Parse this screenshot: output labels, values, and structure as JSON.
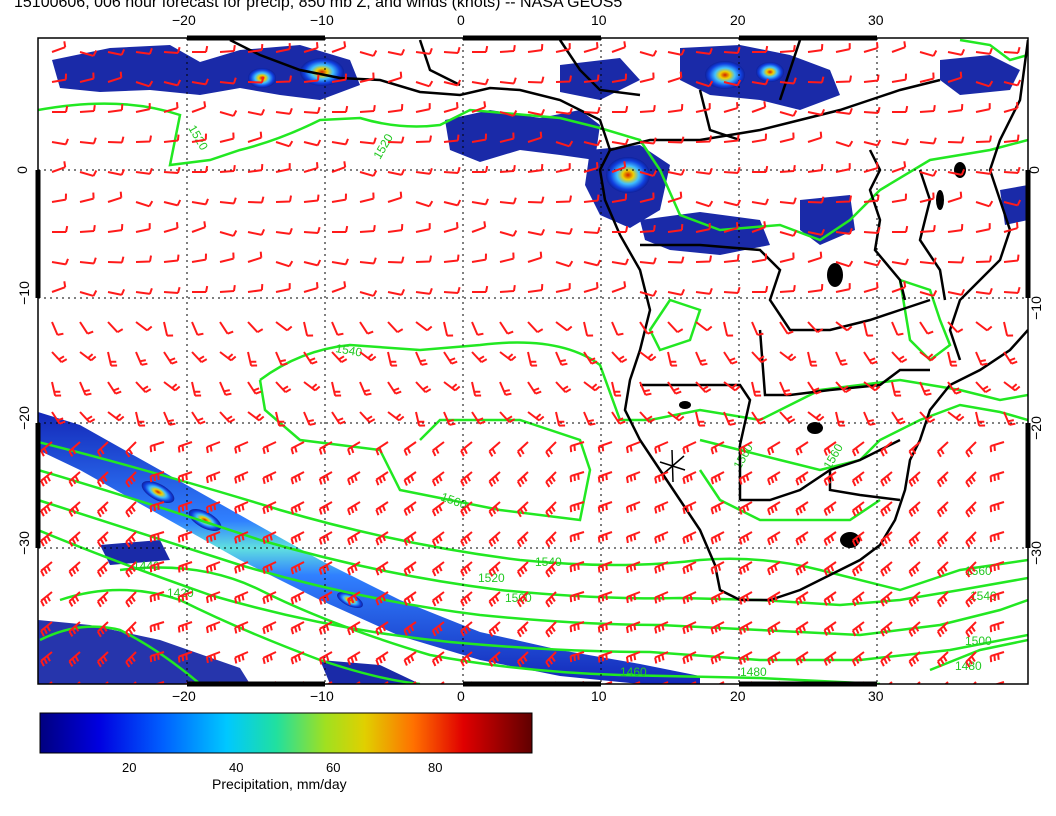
{
  "title": "15100606, 006 hour forecast for precip, 850 mb Z, and winds (knots) -- NASA GEOS5",
  "axes": {
    "lon_ticks": [
      "−20",
      "−10",
      "0",
      "10",
      "20",
      "30"
    ],
    "lat_ticks": [
      "0",
      "−10",
      "−20",
      "−30"
    ]
  },
  "contour_labels": [
    "1520",
    "1520",
    "1540",
    "1560",
    "1560",
    "1540",
    "1560",
    "1520",
    "1500",
    "1440",
    "1420",
    "1480",
    "1560",
    "1540",
    "1500",
    "1480",
    "1460"
  ],
  "colorbar": {
    "ticks": [
      "20",
      "40",
      "60",
      "80"
    ],
    "title": "Precipitation, mm/day",
    "colors": [
      "#00007a",
      "#0000ff",
      "#0080ff",
      "#00e0e0",
      "#50e050",
      "#d0d000",
      "#ff8000",
      "#e00000",
      "#700000"
    ]
  },
  "colors": {
    "contour": "#22e822",
    "wind": "#ff1a1a",
    "coast": "#000000",
    "grid": "#000000"
  },
  "chart_data": {
    "type": "map",
    "lon_range": [
      -33,
      40
    ],
    "lat_range": [
      -39,
      10
    ],
    "contour_field": "850 mb geopotential height (m)",
    "contour_values": [
      1420,
      1440,
      1460,
      1480,
      1500,
      1520,
      1540,
      1560
    ],
    "precip_units": "mm/day",
    "precip_range": [
      0,
      100
    ]
  }
}
